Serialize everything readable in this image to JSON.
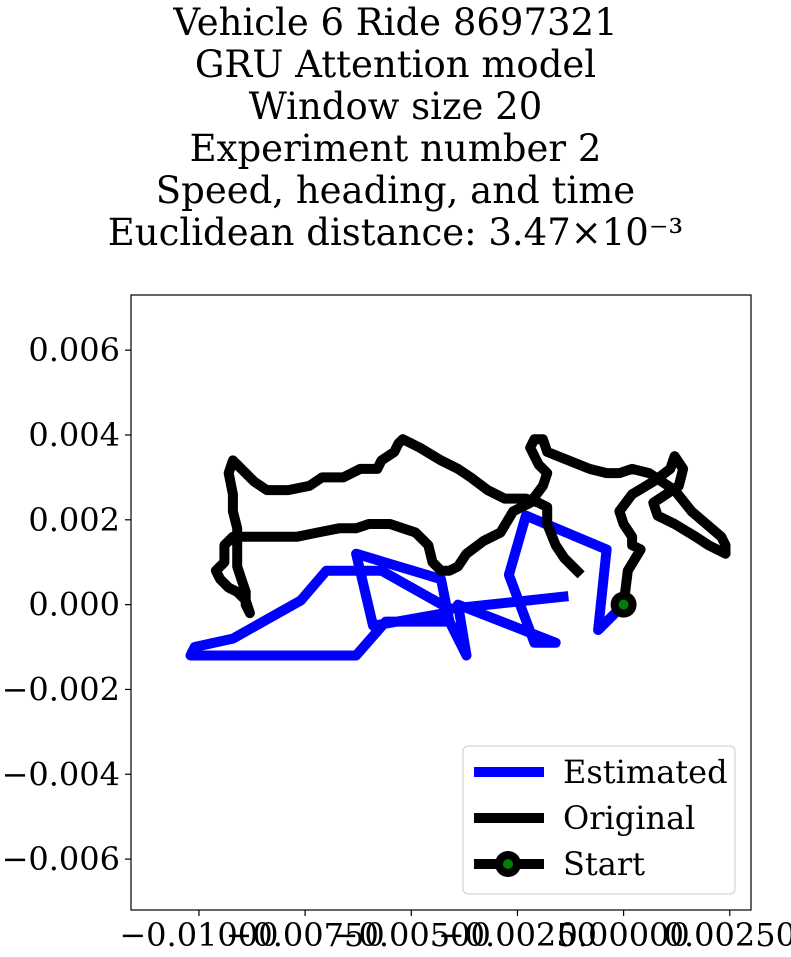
{
  "chart_data": {
    "type": "line",
    "title_lines": [
      "Vehicle 6 Ride 8697321",
      "GRU Attention model",
      "Window size 20",
      "Experiment number 2",
      "Speed, heading, and time",
      "Euclidean distance: 3.47×10⁻³"
    ],
    "xlabel": "",
    "ylabel": "",
    "xlim": [
      -0.0116,
      0.003
    ],
    "ylim": [
      -0.0072,
      0.0073
    ],
    "xticks": [
      -0.01,
      -0.0075,
      -0.005,
      -0.0025,
      0.0,
      0.0025
    ],
    "xtick_labels": [
      "−0.01000",
      "−0.00750",
      "−0.00500",
      "−0.00250",
      "0.00000",
      "0.00250"
    ],
    "yticks": [
      0.006,
      0.004,
      0.002,
      0.0,
      -0.002,
      -0.004,
      -0.006
    ],
    "ytick_labels": [
      "0.006",
      "0.004",
      "0.002",
      "0.000",
      "−0.002",
      "−0.004",
      "−0.006"
    ],
    "grid": false,
    "legend_position": "lower-right",
    "colors": {
      "estimated": "#0000ff",
      "original": "#000000",
      "start_fill": "#008000"
    },
    "series": [
      {
        "name": "Estimated",
        "points": [
          [
            0.0,
            0.0
          ],
          [
            -0.0006,
            -0.0006
          ],
          [
            -0.0004,
            0.0013
          ],
          [
            -0.0023,
            0.0021
          ],
          [
            -0.0027,
            0.0007
          ],
          [
            -0.0021,
            -0.0009
          ],
          [
            -0.0016,
            -0.0009
          ],
          [
            -0.0039,
            0.0
          ],
          [
            -0.0037,
            -0.0012
          ],
          [
            -0.0042,
            -0.0002
          ],
          [
            -0.0059,
            -0.0005
          ],
          [
            -0.0063,
            0.0012
          ],
          [
            -0.0043,
            0.0006
          ],
          [
            -0.0041,
            -0.0004
          ],
          [
            -0.0056,
            -0.0004
          ],
          [
            -0.0063,
            -0.0012
          ],
          [
            -0.0102,
            -0.0012
          ],
          [
            -0.0102,
            -0.0012
          ],
          [
            -0.0101,
            -0.001
          ],
          [
            -0.0092,
            -0.0008
          ],
          [
            -0.0076,
            0.0001
          ],
          [
            -0.007,
            0.0008
          ],
          [
            -0.0057,
            0.0008
          ],
          [
            -0.0041,
            -0.0001
          ],
          [
            -0.0013,
            0.0002
          ]
        ]
      },
      {
        "name": "Original",
        "points": [
          [
            0.0,
            0.0
          ],
          [
            0.0001,
            0.0008
          ],
          [
            0.0004,
            0.0013
          ],
          [
            0.0002,
            0.0014
          ],
          [
            0.0002,
            0.0016
          ],
          [
            0.0,
            0.0019
          ],
          [
            -0.0001,
            0.0022
          ],
          [
            0.0002,
            0.0026
          ],
          [
            0.0007,
            0.0029
          ],
          [
            0.0011,
            0.0032
          ],
          [
            0.0012,
            0.0035
          ],
          [
            0.0014,
            0.0032
          ],
          [
            0.0013,
            0.0028
          ],
          [
            0.0007,
            0.0024
          ],
          [
            0.0008,
            0.0021
          ],
          [
            0.0012,
            0.0019
          ],
          [
            0.0017,
            0.0016
          ],
          [
            0.002,
            0.0014
          ],
          [
            0.0024,
            0.0012
          ],
          [
            0.0024,
            0.0014
          ],
          [
            0.0023,
            0.0016
          ],
          [
            0.0016,
            0.0022
          ],
          [
            0.0012,
            0.0027
          ],
          [
            0.0006,
            0.0031
          ],
          [
            0.0002,
            0.0032
          ],
          [
            -0.0001,
            0.0031
          ],
          [
            -0.0004,
            0.0031
          ],
          [
            -0.0008,
            0.0032
          ],
          [
            -0.0013,
            0.0034
          ],
          [
            -0.0018,
            0.0036
          ],
          [
            -0.0019,
            0.0039
          ],
          [
            -0.0021,
            0.0039
          ],
          [
            -0.0022,
            0.0037
          ],
          [
            -0.002,
            0.0033
          ],
          [
            -0.0018,
            0.0031
          ],
          [
            -0.0019,
            0.0028
          ],
          [
            -0.0022,
            0.0024
          ],
          [
            -0.0026,
            0.0022
          ],
          [
            -0.0029,
            0.0017
          ],
          [
            -0.0033,
            0.0015
          ],
          [
            -0.0037,
            0.0012
          ],
          [
            -0.0039,
            0.0009
          ],
          [
            -0.0041,
            0.0008
          ],
          [
            -0.0043,
            0.0008
          ],
          [
            -0.0045,
            0.001
          ],
          [
            -0.0046,
            0.0014
          ],
          [
            -0.0049,
            0.0017
          ],
          [
            -0.0055,
            0.0019
          ],
          [
            -0.006,
            0.0019
          ],
          [
            -0.0063,
            0.0018
          ],
          [
            -0.0067,
            0.0018
          ],
          [
            -0.0072,
            0.0017
          ],
          [
            -0.0077,
            0.0016
          ],
          [
            -0.0082,
            0.0016
          ],
          [
            -0.0087,
            0.0016
          ],
          [
            -0.0092,
            0.0016
          ],
          [
            -0.0094,
            0.0014
          ],
          [
            -0.0094,
            0.001
          ],
          [
            -0.0096,
            0.0008
          ],
          [
            -0.0095,
            0.0006
          ],
          [
            -0.0093,
            0.0004
          ],
          [
            -0.0091,
            0.0003
          ],
          [
            -0.0089,
            0.0001
          ],
          [
            -0.0088,
            -0.0002
          ],
          [
            -0.0089,
            0.0
          ],
          [
            -0.0089,
            0.0003
          ],
          [
            -0.009,
            0.0006
          ],
          [
            -0.0091,
            0.0009
          ],
          [
            -0.0091,
            0.0013
          ],
          [
            -0.0091,
            0.0018
          ],
          [
            -0.0092,
            0.0022
          ],
          [
            -0.0092,
            0.0026
          ],
          [
            -0.0093,
            0.0031
          ],
          [
            -0.0092,
            0.0034
          ],
          [
            -0.0091,
            0.0033
          ],
          [
            -0.0087,
            0.0029
          ],
          [
            -0.0084,
            0.0027
          ],
          [
            -0.0079,
            0.0027
          ],
          [
            -0.0074,
            0.0028
          ],
          [
            -0.0071,
            0.003
          ],
          [
            -0.0066,
            0.003
          ],
          [
            -0.0062,
            0.0032
          ],
          [
            -0.0058,
            0.0032
          ],
          [
            -0.0057,
            0.0034
          ],
          [
            -0.0054,
            0.0036
          ],
          [
            -0.0053,
            0.0038
          ],
          [
            -0.0052,
            0.0039
          ],
          [
            -0.0048,
            0.0037
          ],
          [
            -0.0043,
            0.0034
          ],
          [
            -0.0039,
            0.0032
          ],
          [
            -0.0036,
            0.003
          ],
          [
            -0.0032,
            0.0027
          ],
          [
            -0.0028,
            0.0025
          ],
          [
            -0.0023,
            0.0025
          ],
          [
            -0.002,
            0.0024
          ],
          [
            -0.0018,
            0.0023
          ],
          [
            -0.0018,
            0.0019
          ],
          [
            -0.0016,
            0.0014
          ],
          [
            -0.0014,
            0.0011
          ],
          [
            -0.0011,
            0.0008
          ],
          [
            -0.001,
            0.0007
          ]
        ]
      }
    ],
    "start_point": {
      "name": "Start",
      "x": 0.0,
      "y": 0.0
    }
  }
}
